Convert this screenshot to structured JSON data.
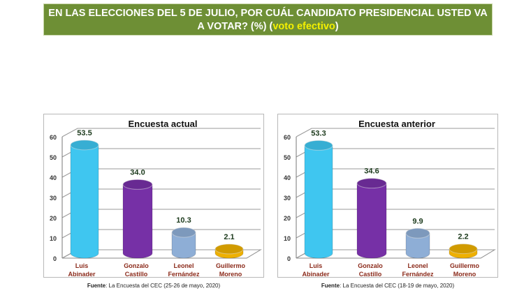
{
  "header": {
    "title_main": "EN LAS ELECCIONES DEL 5 DE JULIO, POR CUÁL CANDIDATO PRESIDENCIAL USTED VA A VOTAR? (%) (",
    "title_highlight": "voto efectivo",
    "title_end": ")"
  },
  "chart_data": [
    {
      "type": "bar",
      "title": "Encuesta actual",
      "categories": [
        [
          "Luis",
          "Abinader"
        ],
        [
          "Gonzalo",
          "Castillo"
        ],
        [
          "Leonel",
          "Fernández"
        ],
        [
          "Guillermo",
          "Moreno"
        ]
      ],
      "values": [
        53.5,
        34.0,
        10.3,
        2.1
      ],
      "labels": [
        "53.5",
        "34.0",
        "10.3",
        "2.1"
      ],
      "colors": [
        "#3fc6f0",
        "#7630a6",
        "#8eaed6",
        "#eeb000"
      ],
      "ylim": [
        0,
        60
      ],
      "yticks": [
        0,
        10,
        20,
        30,
        40,
        50,
        60
      ],
      "grid": true,
      "source_label": "Fuente",
      "source_text": ": La Encuesta del CEC (25-26 de mayo, 2020)"
    },
    {
      "type": "bar",
      "title": "Encuesta anterior",
      "categories": [
        [
          "Luis",
          "Abinader"
        ],
        [
          "Gonzalo",
          "Castillo"
        ],
        [
          "Leonel",
          "Fernández"
        ],
        [
          "Guillermo",
          "Moreno"
        ]
      ],
      "values": [
        53.3,
        34.6,
        9.9,
        2.2
      ],
      "labels": [
        "53.3",
        "34.6",
        "9.9",
        "2.2"
      ],
      "colors": [
        "#3fc6f0",
        "#7630a6",
        "#8eaed6",
        "#eeb000"
      ],
      "ylim": [
        0,
        60
      ],
      "yticks": [
        0,
        10,
        20,
        30,
        40,
        50,
        60
      ],
      "grid": true,
      "source_label": "Fuente",
      "source_text": ": La Encuesta del CEC (18-19 de mayo, 2020)"
    }
  ]
}
